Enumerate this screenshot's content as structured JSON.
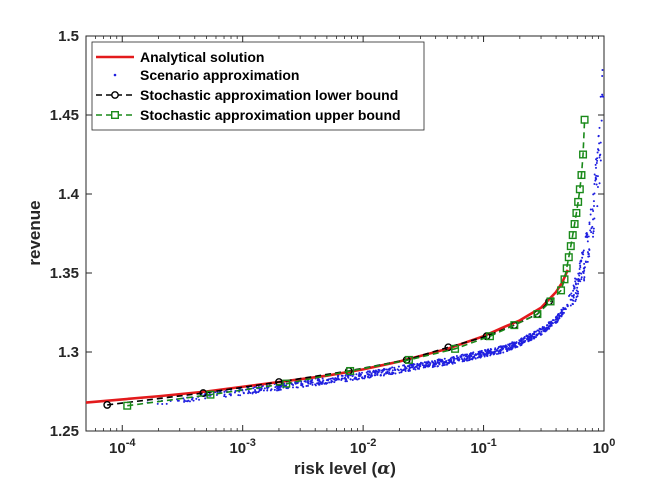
{
  "chart_data": {
    "type": "line",
    "title": "",
    "xlabel_prefix": "risk level (",
    "xlabel_symbol": "α",
    "xlabel_suffix": ")",
    "ylabel": "revenue",
    "xscale": "log",
    "xlim": [
      5e-05,
      1.0
    ],
    "ylim": [
      1.25,
      1.5
    ],
    "x_tick_values": [
      0.0001,
      0.001,
      0.01,
      0.1,
      1
    ],
    "x_tick_labels": [
      {
        "base": "10",
        "exp": "-4"
      },
      {
        "base": "10",
        "exp": "-3"
      },
      {
        "base": "10",
        "exp": "-2"
      },
      {
        "base": "10",
        "exp": "-1"
      },
      {
        "base": "10",
        "exp": "0"
      }
    ],
    "y_ticks": [
      1.25,
      1.3,
      1.35,
      1.4,
      1.45,
      1.5
    ],
    "y_tick_labels": [
      "1.25",
      "1.3",
      "1.35",
      "1.4",
      "1.45",
      "1.5"
    ],
    "legend_position": "top-left",
    "series": [
      {
        "name": "Analytical solution",
        "style": "solid-line",
        "color": "#e31a1c",
        "x": [
          5e-05,
          0.0001,
          0.0002,
          0.0005,
          0.001,
          0.002,
          0.005,
          0.01,
          0.02,
          0.05,
          0.1,
          0.15,
          0.2,
          0.3,
          0.4,
          0.45,
          0.5
        ],
        "y": [
          1.268,
          1.27,
          1.272,
          1.275,
          1.278,
          1.281,
          1.285,
          1.289,
          1.294,
          1.302,
          1.31,
          1.316,
          1.32,
          1.328,
          1.338,
          1.344,
          1.352
        ]
      },
      {
        "name": "Scenario approximation",
        "style": "scatter-dots",
        "color": "#1f1fe0",
        "trend_x": [
          0.00015,
          0.0003,
          0.0005,
          0.001,
          0.002,
          0.005,
          0.01,
          0.02,
          0.05,
          0.1,
          0.15,
          0.2,
          0.3,
          0.4,
          0.5,
          0.6,
          0.7,
          0.8,
          0.85,
          0.9,
          0.95,
          0.99
        ],
        "trend_y": [
          1.268,
          1.27,
          1.272,
          1.275,
          1.278,
          1.282,
          1.285,
          1.289,
          1.294,
          1.299,
          1.302,
          1.306,
          1.313,
          1.32,
          1.33,
          1.342,
          1.36,
          1.385,
          1.4,
          1.42,
          1.445,
          1.482
        ]
      },
      {
        "name": "Stochastic approximation lower bound",
        "style": "dashed-circle",
        "color": "#000000",
        "x": [
          7.5e-05,
          0.00047,
          0.002,
          0.0076,
          0.023,
          0.051,
          0.106,
          0.18,
          0.28,
          0.35
        ],
        "y": [
          1.2665,
          1.274,
          1.281,
          1.288,
          1.295,
          1.303,
          1.31,
          1.317,
          1.324,
          1.332
        ]
      },
      {
        "name": "Stochastic approximation upper bound",
        "style": "dashed-square",
        "color": "#1a8a1a",
        "x": [
          0.00011,
          0.00054,
          0.0023,
          0.0078,
          0.024,
          0.058,
          0.113,
          0.18,
          0.28,
          0.36,
          0.44,
          0.47,
          0.49,
          0.51,
          0.53,
          0.55,
          0.57,
          0.59,
          0.61,
          0.63,
          0.65,
          0.67,
          0.69
        ],
        "y": [
          1.266,
          1.273,
          1.28,
          1.288,
          1.295,
          1.302,
          1.31,
          1.317,
          1.324,
          1.332,
          1.339,
          1.346,
          1.353,
          1.36,
          1.367,
          1.374,
          1.381,
          1.388,
          1.395,
          1.403,
          1.412,
          1.425,
          1.447
        ]
      }
    ]
  },
  "colors": {
    "axis": "#262626",
    "background": "#ffffff"
  }
}
